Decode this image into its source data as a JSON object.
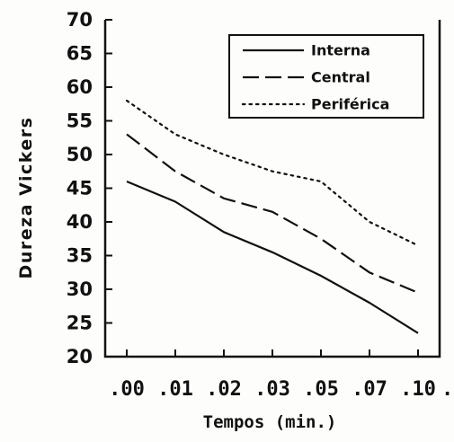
{
  "chart_data": {
    "type": "line",
    "xlabel": "Tempos (min.)",
    "ylabel": "Dureza Vickers",
    "categories": [
      ".00",
      ".01",
      ".02",
      ".03",
      ".05",
      ".07",
      ".10"
    ],
    "x_tick_suffix": ".",
    "ylim": [
      20,
      70
    ],
    "yticks": [
      20,
      25,
      30,
      35,
      40,
      45,
      50,
      55,
      60,
      65,
      70
    ],
    "grid": false,
    "legend_position": "top-right",
    "series": [
      {
        "name": "Interna",
        "style": "solid",
        "values": [
          46,
          43,
          38.5,
          35.5,
          32,
          28,
          23.5
        ]
      },
      {
        "name": "Central",
        "style": "dashed",
        "values": [
          53,
          47.5,
          43.5,
          41.5,
          37.5,
          32.5,
          29.5
        ]
      },
      {
        "name": "Periférica",
        "style": "dotted",
        "values": [
          58,
          53,
          50,
          47.5,
          46,
          40,
          36.5
        ]
      }
    ],
    "colors": {
      "line": "#111111",
      "background": "#fdfdfb"
    }
  }
}
